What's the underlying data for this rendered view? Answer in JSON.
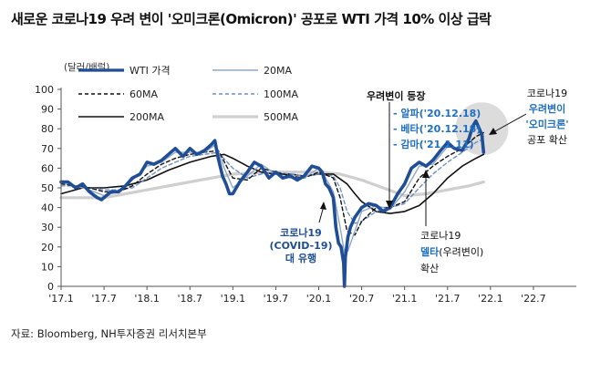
{
  "title": "새로운 코로나19 우려 변이 '오미크론(Omicron)' 공포로 WTI 가격 10% 이상 급락",
  "source": "자료: Bloomberg, NH투자증권 리서치본부",
  "chart_data": {
    "type": "line",
    "unit_label": "(달러/배럴)",
    "ylim": [
      0,
      100
    ],
    "yticks": [
      0,
      10,
      20,
      30,
      40,
      50,
      60,
      70,
      80,
      90,
      100
    ],
    "xlim": [
      2017.0,
      2023.0
    ],
    "xticks": [
      {
        "t": 2017.0,
        "label": "'17.1"
      },
      {
        "t": 2017.5,
        "label": "'17.7"
      },
      {
        "t": 2018.0,
        "label": "'18.1"
      },
      {
        "t": 2018.5,
        "label": "'18.7"
      },
      {
        "t": 2019.0,
        "label": "'19.1"
      },
      {
        "t": 2019.5,
        "label": "'19.7"
      },
      {
        "t": 2020.0,
        "label": "'20.1"
      },
      {
        "t": 2020.5,
        "label": "'20.7"
      },
      {
        "t": 2021.0,
        "label": "'21.1"
      },
      {
        "t": 2021.5,
        "label": "'21.7"
      },
      {
        "t": 2022.0,
        "label": "'22.1"
      },
      {
        "t": 2022.5,
        "label": "'22.7"
      }
    ],
    "series": [
      {
        "name": "WTI 가격",
        "color": "#1f4e96",
        "dash": "",
        "width": 3.6,
        "x": [
          2017.0,
          2017.08,
          2017.17,
          2017.25,
          2017.33,
          2017.42,
          2017.47,
          2017.58,
          2017.67,
          2017.75,
          2017.83,
          2017.92,
          2018.0,
          2018.08,
          2018.17,
          2018.25,
          2018.33,
          2018.42,
          2018.5,
          2018.58,
          2018.67,
          2018.75,
          2018.79,
          2018.83,
          2018.88,
          2018.92,
          2018.96,
          2019.0,
          2019.08,
          2019.17,
          2019.25,
          2019.33,
          2019.42,
          2019.5,
          2019.58,
          2019.67,
          2019.75,
          2019.83,
          2019.92,
          2020.0,
          2020.04,
          2020.08,
          2020.12,
          2020.17,
          2020.2,
          2020.23,
          2020.26,
          2020.29,
          2020.3,
          2020.31,
          2020.32,
          2020.34,
          2020.37,
          2020.42,
          2020.5,
          2020.58,
          2020.67,
          2020.75,
          2020.83,
          2020.92,
          2021.0,
          2021.08,
          2021.17,
          2021.25,
          2021.33,
          2021.42,
          2021.5,
          2021.58,
          2021.67,
          2021.75,
          2021.79,
          2021.83,
          2021.87,
          2021.9,
          2021.92
        ],
        "y": [
          53,
          53,
          50,
          52,
          48,
          45,
          44,
          48,
          48,
          51,
          55,
          57,
          63,
          62,
          64,
          67,
          70,
          66,
          70,
          67,
          69,
          72,
          74,
          65,
          56,
          52,
          47,
          47,
          53,
          58,
          63,
          61,
          55,
          58,
          55,
          56,
          54,
          56,
          61,
          60,
          58,
          52,
          50,
          45,
          30,
          22,
          20,
          12,
          0,
          15,
          18,
          25,
          30,
          35,
          40,
          42,
          41,
          38,
          40,
          47,
          52,
          60,
          63,
          61,
          64,
          69,
          73,
          70,
          69,
          75,
          81,
          84,
          80,
          77,
          68
        ]
      },
      {
        "name": "20MA",
        "color": "#8fa6c8",
        "dash": "",
        "width": 1.4,
        "x": [
          2017.0,
          2017.17,
          2017.33,
          2017.5,
          2017.67,
          2017.83,
          2018.0,
          2018.17,
          2018.33,
          2018.5,
          2018.67,
          2018.8,
          2018.9,
          2019.0,
          2019.17,
          2019.33,
          2019.5,
          2019.67,
          2019.83,
          2020.0,
          2020.08,
          2020.17,
          2020.25,
          2020.3,
          2020.34,
          2020.42,
          2020.5,
          2020.67,
          2020.83,
          2021.0,
          2021.17,
          2021.33,
          2021.5,
          2021.67,
          2021.8,
          2021.88,
          2021.92
        ],
        "y": [
          53,
          51,
          49,
          46,
          48,
          54,
          61,
          63,
          68,
          68,
          68,
          72,
          60,
          50,
          56,
          62,
          57,
          55,
          55,
          60,
          55,
          48,
          30,
          17,
          18,
          28,
          38,
          41,
          39,
          48,
          61,
          62,
          71,
          69,
          80,
          80,
          76
        ]
      },
      {
        "name": "60MA",
        "color": "#111111",
        "dash": "4,3",
        "width": 1.4,
        "x": [
          2017.0,
          2017.17,
          2017.33,
          2017.5,
          2017.67,
          2017.83,
          2018.0,
          2018.17,
          2018.33,
          2018.5,
          2018.67,
          2018.83,
          2019.0,
          2019.17,
          2019.33,
          2019.5,
          2019.67,
          2019.83,
          2020.0,
          2020.17,
          2020.25,
          2020.33,
          2020.42,
          2020.5,
          2020.67,
          2020.83,
          2021.0,
          2021.17,
          2021.33,
          2021.5,
          2021.67,
          2021.83,
          2021.92
        ],
        "y": [
          52,
          51,
          50,
          48,
          48,
          51,
          57,
          62,
          65,
          67,
          68,
          69,
          55,
          54,
          60,
          58,
          56,
          55,
          58,
          55,
          45,
          28,
          26,
          33,
          40,
          40,
          43,
          55,
          61,
          66,
          70,
          76,
          78
        ]
      },
      {
        "name": "100MA",
        "color": "#6f8fc8",
        "dash": "4,3",
        "width": 1.4,
        "x": [
          2017.0,
          2017.17,
          2017.33,
          2017.5,
          2017.67,
          2017.83,
          2018.0,
          2018.17,
          2018.33,
          2018.5,
          2018.67,
          2018.83,
          2019.0,
          2019.17,
          2019.33,
          2019.5,
          2019.67,
          2019.83,
          2020.0,
          2020.17,
          2020.25,
          2020.33,
          2020.42,
          2020.5,
          2020.67,
          2020.83,
          2021.0,
          2021.17,
          2021.33,
          2021.5,
          2021.67,
          2021.83,
          2021.92
        ],
        "y": [
          51,
          51,
          50,
          49,
          49,
          50,
          55,
          60,
          63,
          66,
          67,
          68,
          60,
          55,
          57,
          58,
          57,
          56,
          57,
          56,
          50,
          38,
          32,
          33,
          38,
          40,
          42,
          50,
          57,
          63,
          68,
          73,
          75
        ]
      },
      {
        "name": "200MA",
        "color": "#111111",
        "dash": "",
        "width": 1.6,
        "x": [
          2017.0,
          2017.25,
          2017.5,
          2017.75,
          2018.0,
          2018.25,
          2018.5,
          2018.75,
          2018.9,
          2019.0,
          2019.17,
          2019.33,
          2019.5,
          2019.67,
          2019.83,
          2020.0,
          2020.17,
          2020.33,
          2020.42,
          2020.5,
          2020.67,
          2020.83,
          2021.0,
          2021.17,
          2021.33,
          2021.5,
          2021.67,
          2021.83,
          2021.92
        ],
        "y": [
          47,
          50,
          50,
          51,
          54,
          59,
          63,
          66,
          67,
          65,
          61,
          58,
          57,
          57,
          56,
          57,
          57,
          52,
          47,
          43,
          38,
          37,
          38,
          41,
          47,
          55,
          61,
          65,
          67
        ]
      },
      {
        "name": "500MA",
        "color": "#cfcfcf",
        "dash": "",
        "width": 3.2,
        "x": [
          2017.0,
          2017.5,
          2018.0,
          2018.5,
          2019.0,
          2019.5,
          2020.0,
          2020.25,
          2020.5,
          2020.75,
          2021.0,
          2021.25,
          2021.5,
          2021.75,
          2021.92
        ],
        "y": [
          45,
          45,
          49,
          53,
          57,
          58,
          58,
          57,
          54,
          50,
          46,
          47,
          49,
          51,
          53
        ]
      }
    ],
    "annotations": [
      {
        "id": "covid",
        "lines": [
          "코로나19",
          "(COVID-19)",
          "대 유행"
        ],
        "color": "#1f4e96"
      },
      {
        "id": "variants",
        "lines": [
          "우려변이 등장",
          "- 알파('20.12.18)",
          "- 베타('20.12.18)",
          "- 감마('21.1.11)"
        ],
        "label_color": "#111111",
        "item_color": "#1f6fc0"
      },
      {
        "id": "delta",
        "lines": [
          "코로나19",
          "델타(우려변이)",
          "확산"
        ],
        "label_color": "#111111",
        "item_color": "#1f6fc0"
      },
      {
        "id": "omicron",
        "lines": [
          "코로나19",
          "우려변이",
          "'오미크론'",
          "공포 확산"
        ],
        "label_color": "#111111",
        "item_color": "#1f6fc0"
      }
    ]
  }
}
